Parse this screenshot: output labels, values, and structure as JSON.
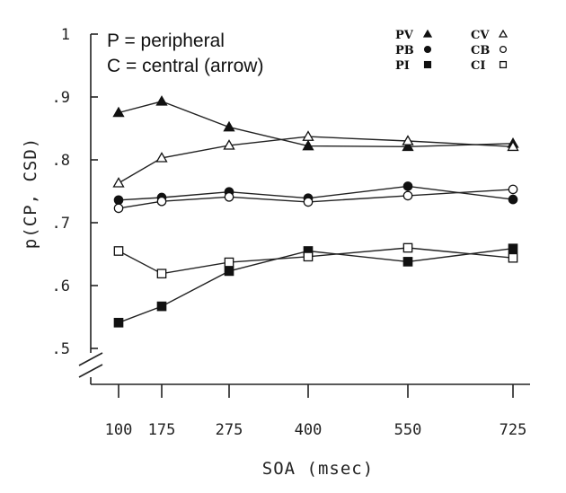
{
  "chart_data": {
    "type": "line",
    "title": "",
    "xlabel": "SOA (msec)",
    "ylabel": "p(CP, CSD)",
    "x": [
      100,
      175,
      275,
      400,
      550,
      725
    ],
    "x_tick_labels": [
      "100",
      "175",
      "275",
      "400",
      "550",
      "725"
    ],
    "y_ticks": [
      0.5,
      0.6,
      0.7,
      0.8,
      0.9,
      1.0
    ],
    "y_tick_labels": [
      ".5",
      ".6",
      ".7",
      ".8",
      ".9",
      "1"
    ],
    "ylim": [
      0.5,
      1.0
    ],
    "y_axis_break": true,
    "grid": false,
    "legend_placement": "top-right",
    "notes": [
      "P = peripheral",
      "C = central (arrow)"
    ],
    "series": [
      {
        "name": "PV",
        "marker": "triangle",
        "filled": true,
        "values": [
          0.875,
          0.893,
          0.852,
          0.822,
          0.821,
          0.826
        ]
      },
      {
        "name": "CV",
        "marker": "triangle",
        "filled": false,
        "values": [
          0.763,
          0.803,
          0.823,
          0.837,
          0.83,
          0.821
        ]
      },
      {
        "name": "PB",
        "marker": "circle",
        "filled": true,
        "values": [
          0.736,
          0.74,
          0.749,
          0.739,
          0.758,
          0.737
        ]
      },
      {
        "name": "CB",
        "marker": "circle",
        "filled": false,
        "values": [
          0.723,
          0.734,
          0.741,
          0.733,
          0.743,
          0.753
        ]
      },
      {
        "name": "PI",
        "marker": "square",
        "filled": true,
        "values": [
          0.541,
          0.567,
          0.623,
          0.655,
          0.638,
          0.659
        ]
      },
      {
        "name": "CI",
        "marker": "square",
        "filled": false,
        "values": [
          0.655,
          0.619,
          0.637,
          0.646,
          0.66,
          0.644
        ]
      }
    ]
  }
}
